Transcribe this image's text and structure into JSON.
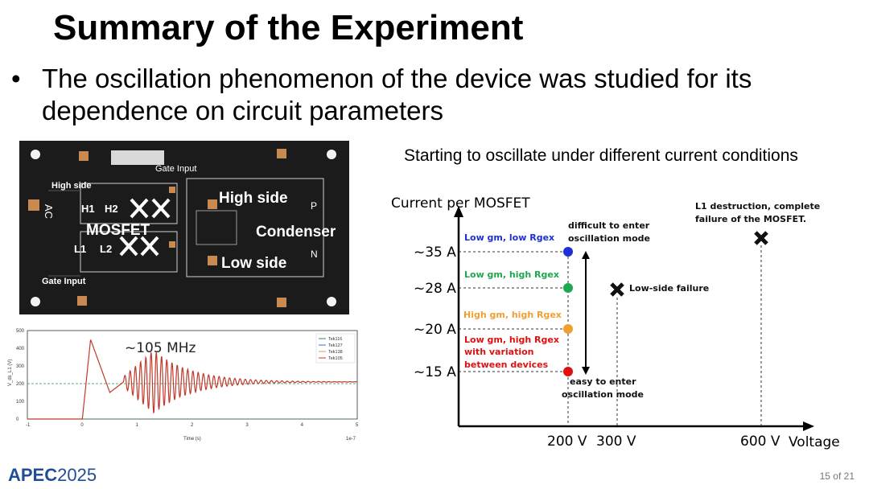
{
  "slide": {
    "title": "Summary of the Experiment",
    "bullet_symbol": "•",
    "bullet_text": "The oscillation phenomenon of the device was studied for its dependence on circuit parameters",
    "page_number": "15 of 21",
    "logo_text": "APEC",
    "logo_year": "2025"
  },
  "board_photo": {
    "labels": {
      "gate_input_top": "Gate Input",
      "high_side_left": "High side",
      "ac": "AC",
      "h1": "H1",
      "h2": "H2",
      "mosfet": "MOSFET",
      "l1": "L1",
      "l2": "L2",
      "gate_input_bottom": "Gate Input",
      "high_side": "High side",
      "condenser": "Condenser",
      "low_side": "Low side",
      "p": "P",
      "n": "N"
    }
  },
  "waveform": {
    "annotation": "~105 MHz",
    "xlabel": "Time (s)",
    "ylabel": "V_ds_L1 (V)",
    "x_multiplier": "1e-7",
    "x_ticks": [
      "-1",
      "0",
      "1",
      "2",
      "3",
      "4",
      "5"
    ],
    "y_ticks": [
      "0",
      "100",
      "200",
      "300",
      "400",
      "500"
    ],
    "legend": [
      "Tek116",
      "Tek127",
      "Tek138",
      "Tek105"
    ],
    "colors": {
      "trace": "#c0392b",
      "reference": "#2e8b57"
    }
  },
  "chart_data": {
    "type": "scatter",
    "title": "Starting to oscillate under different current conditions",
    "ylabel": "Current per MOSFET",
    "xlabel": "Voltage",
    "x_ticks": [
      "200 V",
      "300 V",
      "600 V"
    ],
    "y_ticks": [
      "~15 A",
      "~20 A",
      "~28 A",
      "~35 A"
    ],
    "points": [
      {
        "x": "200 V",
        "y": "~35 A",
        "label": "Low gm, low Rgex",
        "color": "#1f2fd6",
        "marker": "dot"
      },
      {
        "x": "200 V",
        "y": "~28 A",
        "label": "Low gm, high Rgex",
        "color": "#1fa850",
        "marker": "dot"
      },
      {
        "x": "200 V",
        "y": "~20 A",
        "label": "High gm, high Rgex",
        "color": "#f0a030",
        "marker": "dot"
      },
      {
        "x": "200 V",
        "y": "~15 A",
        "label": "Low gm, high Rgex with variation between devices",
        "color": "#e01010",
        "marker": "dot"
      },
      {
        "x": "300 V",
        "y": "~28 A",
        "label": "Low-side failure",
        "color": "#111111",
        "marker": "cross"
      },
      {
        "x": "600 V",
        "y": "~35 A",
        "label": "L1 destruction, complete failure of the MOSFET.",
        "color": "#111111",
        "marker": "cross"
      }
    ],
    "annotations": {
      "top": "difficult to enter oscillation mode",
      "bottom": "easy to enter oscillation mode"
    },
    "label_lines": {
      "p1": "Low gm, low Rgex",
      "p2": "Low gm, high Rgex",
      "p3": "High gm, high Rgex",
      "p4a": "Low gm, high Rgex",
      "p4b": "with variation",
      "p4c": "between devices",
      "f1": "Low-side failure",
      "f2a": "L1 destruction, complete",
      "f2b": "failure of the MOSFET.",
      "d1": "difficult to enter",
      "d2": "oscillation mode",
      "e1": "easy to enter",
      "e2": "oscillation mode"
    }
  }
}
